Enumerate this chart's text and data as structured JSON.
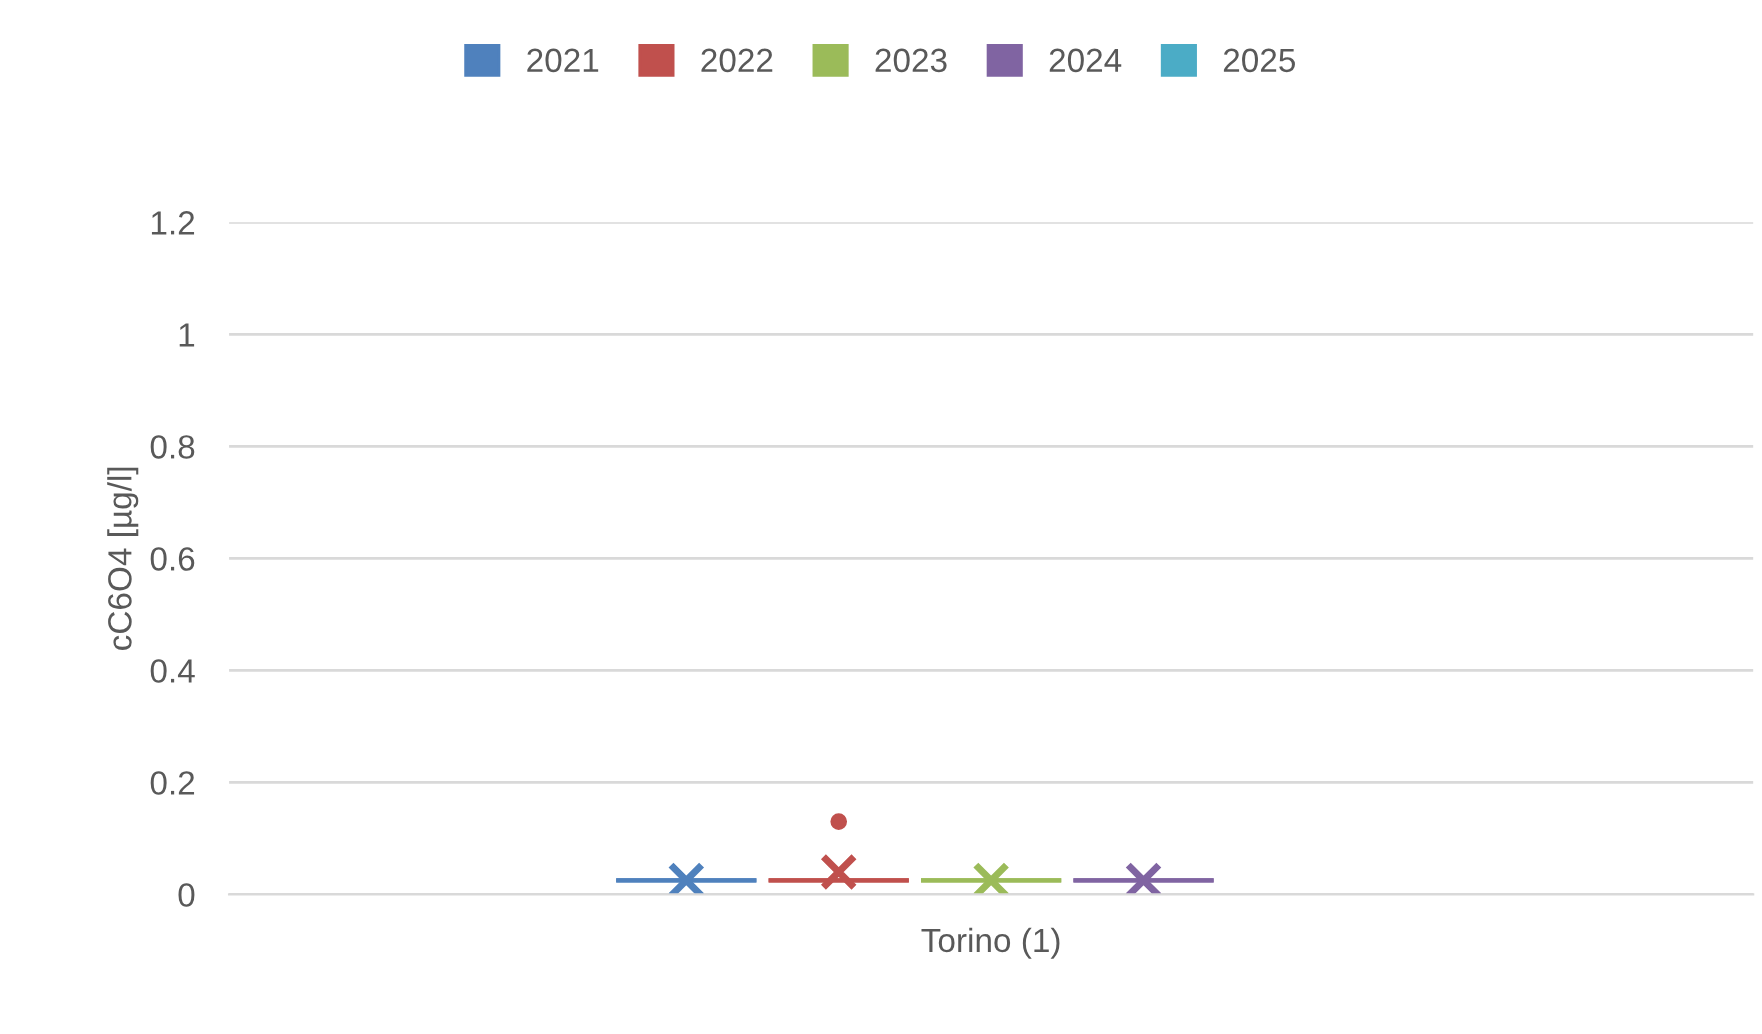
{
  "chart_data": {
    "type": "box",
    "ylabel": "cC6O4 [µg/l]",
    "categories": [
      "Torino (1)"
    ],
    "series": [
      {
        "name": "2021",
        "color": "#4f81bd",
        "boxes": [
          {
            "low": 0.025,
            "q1": 0.025,
            "median": 0.025,
            "q3": 0.025,
            "high": 0.025,
            "mean": 0.025
          }
        ]
      },
      {
        "name": "2022",
        "color": "#c0504d",
        "boxes": [
          {
            "low": 0.025,
            "q1": 0.025,
            "median": 0.025,
            "q3": 0.025,
            "high": 0.025,
            "mean": 0.04,
            "outliers": [
              0.13
            ]
          }
        ]
      },
      {
        "name": "2023",
        "color": "#9bbb59",
        "boxes": [
          {
            "low": 0.025,
            "q1": 0.025,
            "median": 0.025,
            "q3": 0.025,
            "high": 0.025,
            "mean": 0.025
          }
        ]
      },
      {
        "name": "2024",
        "color": "#8064a2",
        "boxes": [
          {
            "low": 0.025,
            "q1": 0.025,
            "median": 0.025,
            "q3": 0.025,
            "high": 0.025,
            "mean": 0.025
          }
        ]
      },
      {
        "name": "2025",
        "color": "#4bacc6",
        "boxes": [
          null
        ]
      }
    ],
    "ylim": [
      0,
      1.2
    ],
    "yticks": [
      0,
      0.2,
      0.4,
      0.6,
      0.8,
      1,
      1.2
    ],
    "grid": "y",
    "legend": "top"
  }
}
